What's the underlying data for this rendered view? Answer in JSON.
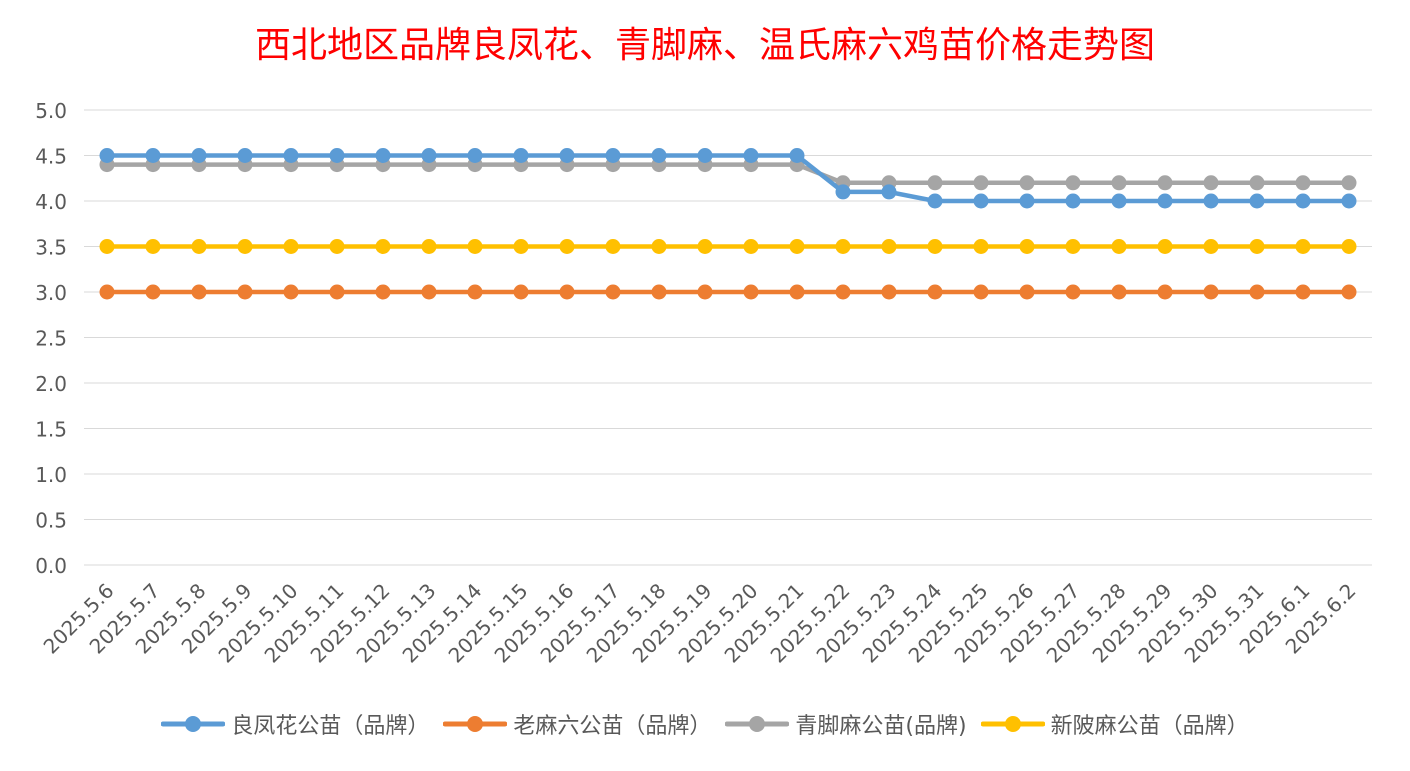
{
  "chart_data": {
    "type": "line",
    "title": "西北地区品牌良凤花、青脚麻、温氏麻六鸡苗价格走势图",
    "xlabel": "",
    "ylabel": "",
    "x": [
      "2025.5.6",
      "2025.5.7",
      "2025.5.8",
      "2025.5.9",
      "2025.5.10",
      "2025.5.11",
      "2025.5.12",
      "2025.5.13",
      "2025.5.14",
      "2025.5.15",
      "2025.5.16",
      "2025.5.17",
      "2025.5.18",
      "2025.5.19",
      "2025.5.20",
      "2025.5.21",
      "2025.5.22",
      "2025.5.23",
      "2025.5.24",
      "2025.5.25",
      "2025.5.26",
      "2025.5.27",
      "2025.5.28",
      "2025.5.29",
      "2025.5.30",
      "2025.5.31",
      "2025.6.1",
      "2025.6.2"
    ],
    "ylim": [
      0,
      5
    ],
    "yticks": [
      "0.0",
      "0.5",
      "1.0",
      "1.5",
      "2.0",
      "2.5",
      "3.0",
      "3.5",
      "4.0",
      "4.5",
      "5.0"
    ],
    "grid": true,
    "legend_position": "bottom",
    "series": [
      {
        "name": "良凤花公苗（品牌）",
        "color": "#5b9bd5",
        "values": [
          4.5,
          4.5,
          4.5,
          4.5,
          4.5,
          4.5,
          4.5,
          4.5,
          4.5,
          4.5,
          4.5,
          4.5,
          4.5,
          4.5,
          4.5,
          4.5,
          4.1,
          4.1,
          4.0,
          4.0,
          4.0,
          4.0,
          4.0,
          4.0,
          4.0,
          4.0,
          4.0,
          4.0
        ]
      },
      {
        "name": "老麻六公苗（品牌）",
        "color": "#ed7d31",
        "values": [
          3.0,
          3.0,
          3.0,
          3.0,
          3.0,
          3.0,
          3.0,
          3.0,
          3.0,
          3.0,
          3.0,
          3.0,
          3.0,
          3.0,
          3.0,
          3.0,
          3.0,
          3.0,
          3.0,
          3.0,
          3.0,
          3.0,
          3.0,
          3.0,
          3.0,
          3.0,
          3.0,
          3.0
        ]
      },
      {
        "name": "青脚麻公苗(品牌)",
        "color": "#a5a5a5",
        "values": [
          4.4,
          4.4,
          4.4,
          4.4,
          4.4,
          4.4,
          4.4,
          4.4,
          4.4,
          4.4,
          4.4,
          4.4,
          4.4,
          4.4,
          4.4,
          4.4,
          4.2,
          4.2,
          4.2,
          4.2,
          4.2,
          4.2,
          4.2,
          4.2,
          4.2,
          4.2,
          4.2,
          4.2
        ]
      },
      {
        "name": "新陂麻公苗（品牌）",
        "color": "#ffc000",
        "values": [
          3.5,
          3.5,
          3.5,
          3.5,
          3.5,
          3.5,
          3.5,
          3.5,
          3.5,
          3.5,
          3.5,
          3.5,
          3.5,
          3.5,
          3.5,
          3.5,
          3.5,
          3.5,
          3.5,
          3.5,
          3.5,
          3.5,
          3.5,
          3.5,
          3.5,
          3.5,
          3.5,
          3.5
        ]
      }
    ],
    "draw_order": [
      1,
      3,
      2,
      0
    ]
  },
  "colors": {
    "title": "#ff0000",
    "gridline": "#d9d9d9",
    "tick_text": "#595959"
  }
}
